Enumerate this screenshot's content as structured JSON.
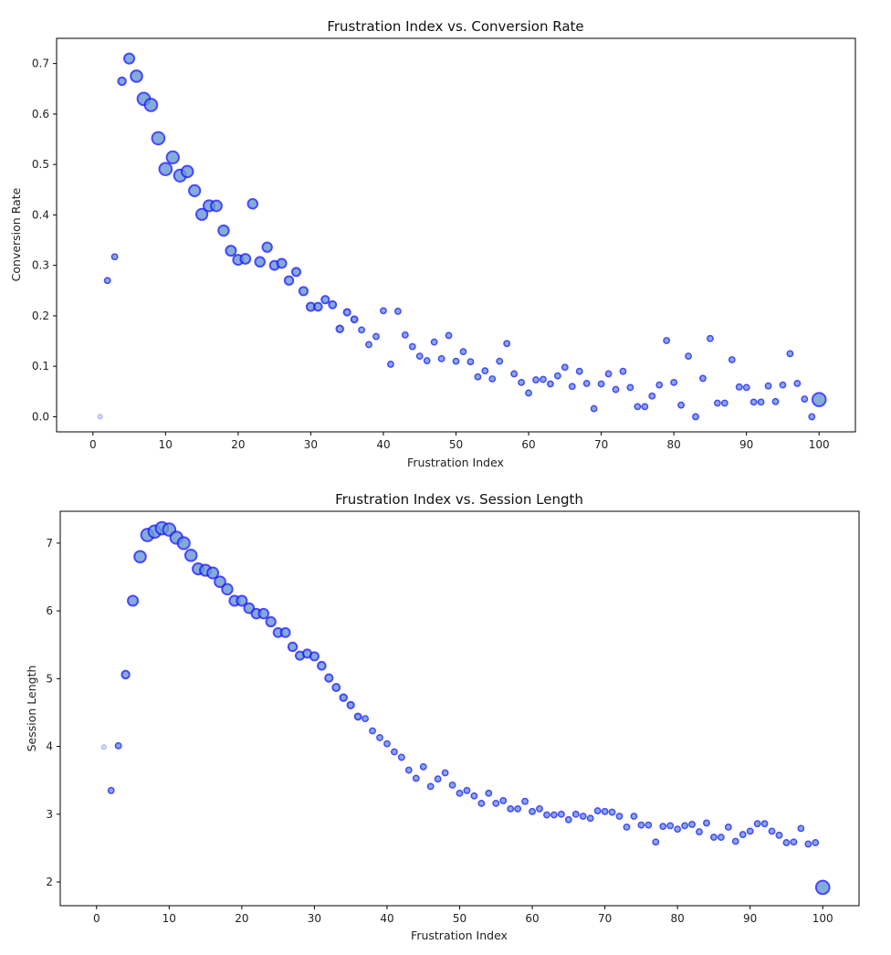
{
  "chart_data": [
    {
      "type": "scatter",
      "title": "Frustration Index vs. Conversion Rate",
      "xlabel": "Frustration Index",
      "ylabel": "Conversion Rate",
      "xlim": [
        -5,
        105
      ],
      "ylim": [
        -0.03,
        0.75
      ],
      "xticks": [
        0,
        10,
        20,
        30,
        40,
        50,
        60,
        70,
        80,
        90,
        100
      ],
      "yticks": [
        "0.0",
        "0.1",
        "0.2",
        "0.3",
        "0.4",
        "0.5",
        "0.6",
        "0.7"
      ],
      "grid": false,
      "marker_face_color": "#6a9bd1",
      "marker_edge_color": "#1f1fff",
      "x": [
        1,
        2,
        3,
        4,
        5,
        6,
        7,
        8,
        9,
        10,
        11,
        12,
        13,
        14,
        15,
        16,
        17,
        18,
        19,
        20,
        21,
        22,
        23,
        24,
        25,
        26,
        27,
        28,
        29,
        30,
        31,
        32,
        33,
        34,
        35,
        36,
        37,
        38,
        39,
        40,
        41,
        42,
        43,
        44,
        45,
        46,
        47,
        48,
        49,
        50,
        51,
        52,
        53,
        54,
        55,
        56,
        57,
        58,
        59,
        60,
        61,
        62,
        63,
        64,
        65,
        66,
        67,
        68,
        69,
        70,
        71,
        72,
        73,
        74,
        75,
        76,
        77,
        78,
        79,
        80,
        81,
        82,
        83,
        84,
        85,
        86,
        87,
        88,
        89,
        90,
        91,
        92,
        93,
        94,
        95,
        96,
        97,
        98,
        99,
        100
      ],
      "y": [
        0.0,
        0.27,
        0.317,
        0.665,
        0.71,
        0.675,
        0.63,
        0.618,
        0.552,
        0.491,
        0.514,
        0.478,
        0.486,
        0.448,
        0.401,
        0.418,
        0.418,
        0.369,
        0.329,
        0.311,
        0.313,
        0.422,
        0.307,
        0.336,
        0.3,
        0.304,
        0.27,
        0.287,
        0.249,
        0.218,
        0.218,
        0.232,
        0.222,
        0.174,
        0.207,
        0.193,
        0.172,
        0.143,
        0.159,
        0.21,
        0.104,
        0.209,
        0.162,
        0.139,
        0.12,
        0.111,
        0.148,
        0.115,
        0.161,
        0.11,
        0.129,
        0.109,
        0.079,
        0.091,
        0.075,
        0.11,
        0.145,
        0.085,
        0.068,
        0.047,
        0.073,
        0.074,
        0.065,
        0.081,
        0.098,
        0.06,
        0.09,
        0.066,
        0.016,
        0.065,
        0.085,
        0.054,
        0.09,
        0.058,
        0.02,
        0.02,
        0.041,
        0.063,
        0.151,
        0.068,
        0.023,
        0.12,
        0.0,
        0.076,
        0.155,
        0.027,
        0.027,
        0.113,
        0.059,
        0.058,
        0.029,
        0.029,
        0.061,
        0.03,
        0.063,
        0.125,
        0.066,
        0.035,
        0.0,
        0.034
      ],
      "sizes": [
        0.15,
        0.3,
        0.3,
        0.5,
        0.75,
        0.9,
        1,
        1,
        1,
        1,
        0.97,
        0.95,
        0.9,
        0.86,
        0.86,
        0.85,
        0.82,
        0.79,
        0.75,
        0.75,
        0.72,
        0.7,
        0.7,
        0.68,
        0.64,
        0.64,
        0.59,
        0.56,
        0.56,
        0.56,
        0.52,
        0.48,
        0.45,
        0.41,
        0.38,
        0.35,
        0.3,
        0.3,
        0.3,
        0.3,
        0.3,
        0.3,
        0.3,
        0.3,
        0.3,
        0.3,
        0.3,
        0.3,
        0.3,
        0.3,
        0.3,
        0.3,
        0.3,
        0.3,
        0.3,
        0.3,
        0.3,
        0.3,
        0.3,
        0.3,
        0.3,
        0.3,
        0.3,
        0.3,
        0.3,
        0.3,
        0.3,
        0.3,
        0.3,
        0.3,
        0.3,
        0.3,
        0.3,
        0.3,
        0.3,
        0.3,
        0.3,
        0.3,
        0.3,
        0.3,
        0.3,
        0.3,
        0.3,
        0.3,
        0.3,
        0.3,
        0.3,
        0.3,
        0.3,
        0.3,
        0.3,
        0.3,
        0.3,
        0.3,
        0.3,
        0.3,
        0.3,
        0.3,
        0.3,
        1.1
      ]
    },
    {
      "type": "scatter",
      "title": "Frustration Index vs. Session Length",
      "xlabel": "Frustration Index",
      "ylabel": "Session Length",
      "xlim": [
        -5,
        105
      ],
      "ylim": [
        1.65,
        7.47
      ],
      "xticks": [
        0,
        10,
        20,
        30,
        40,
        50,
        60,
        70,
        80,
        90,
        100
      ],
      "yticks": [
        "2",
        "3",
        "4",
        "5",
        "6",
        "7"
      ],
      "grid": false,
      "marker_face_color": "#6a9bd1",
      "marker_edge_color": "#1f1fff",
      "x": [
        1,
        2,
        3,
        4,
        5,
        6,
        7,
        8,
        9,
        10,
        11,
        12,
        13,
        14,
        15,
        16,
        17,
        18,
        19,
        20,
        21,
        22,
        23,
        24,
        25,
        26,
        27,
        28,
        29,
        30,
        31,
        32,
        33,
        34,
        35,
        36,
        37,
        38,
        39,
        40,
        41,
        42,
        43,
        44,
        45,
        46,
        47,
        48,
        49,
        50,
        51,
        52,
        53,
        54,
        55,
        56,
        57,
        58,
        59,
        60,
        61,
        62,
        63,
        64,
        65,
        66,
        67,
        68,
        69,
        70,
        71,
        72,
        73,
        74,
        75,
        76,
        77,
        78,
        79,
        80,
        81,
        82,
        83,
        84,
        85,
        86,
        87,
        88,
        89,
        90,
        91,
        92,
        93,
        94,
        95,
        96,
        97,
        98,
        99,
        100
      ],
      "y": [
        3.99,
        3.35,
        4.01,
        5.06,
        6.15,
        6.8,
        7.12,
        7.17,
        7.22,
        7.2,
        7.08,
        7.0,
        6.82,
        6.62,
        6.6,
        6.56,
        6.43,
        6.32,
        6.15,
        6.15,
        6.04,
        5.96,
        5.96,
        5.84,
        5.68,
        5.68,
        5.47,
        5.34,
        5.37,
        5.33,
        5.19,
        5.01,
        4.87,
        4.72,
        4.61,
        4.44,
        4.41,
        4.23,
        4.13,
        4.04,
        3.92,
        3.84,
        3.65,
        3.53,
        3.7,
        3.41,
        3.52,
        3.61,
        3.43,
        3.31,
        3.35,
        3.27,
        3.16,
        3.31,
        3.16,
        3.2,
        3.08,
        3.08,
        3.19,
        3.04,
        3.08,
        2.99,
        2.99,
        3.0,
        2.92,
        3.0,
        2.97,
        2.94,
        3.05,
        3.04,
        3.03,
        2.97,
        2.81,
        2.97,
        2.84,
        2.84,
        2.59,
        2.82,
        2.83,
        2.78,
        2.83,
        2.85,
        2.74,
        2.87,
        2.66,
        2.66,
        2.81,
        2.6,
        2.7,
        2.75,
        2.86,
        2.86,
        2.75,
        2.69,
        2.58,
        2.59,
        2.79,
        2.56,
        2.58,
        1.92
      ],
      "sizes": [
        0.15,
        0.3,
        0.3,
        0.5,
        0.75,
        0.9,
        1,
        1,
        1,
        1,
        0.97,
        0.95,
        0.9,
        0.86,
        0.86,
        0.85,
        0.82,
        0.79,
        0.75,
        0.75,
        0.72,
        0.7,
        0.7,
        0.68,
        0.64,
        0.64,
        0.59,
        0.56,
        0.56,
        0.56,
        0.52,
        0.48,
        0.45,
        0.41,
        0.38,
        0.35,
        0.3,
        0.3,
        0.3,
        0.3,
        0.3,
        0.3,
        0.3,
        0.3,
        0.3,
        0.3,
        0.3,
        0.3,
        0.3,
        0.3,
        0.3,
        0.3,
        0.3,
        0.3,
        0.3,
        0.3,
        0.3,
        0.3,
        0.3,
        0.3,
        0.3,
        0.3,
        0.3,
        0.3,
        0.3,
        0.3,
        0.3,
        0.3,
        0.3,
        0.3,
        0.3,
        0.3,
        0.3,
        0.3,
        0.3,
        0.3,
        0.3,
        0.3,
        0.3,
        0.3,
        0.3,
        0.3,
        0.3,
        0.3,
        0.3,
        0.3,
        0.3,
        0.3,
        0.3,
        0.3,
        0.3,
        0.3,
        0.3,
        0.3,
        0.3,
        0.3,
        0.3,
        0.3,
        0.3,
        1.1
      ]
    }
  ]
}
